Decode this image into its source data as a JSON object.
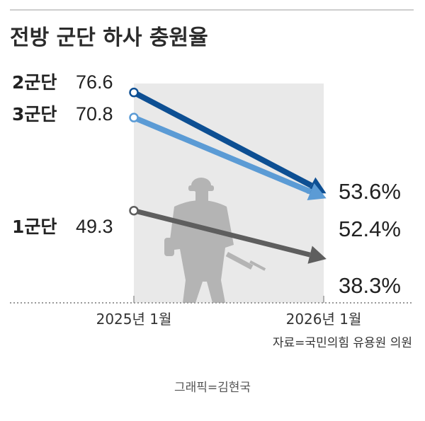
{
  "chart_data": {
    "type": "line",
    "title": "전방 군단 하사 충원율",
    "categories": [
      "2025년 1월",
      "2026년 1월"
    ],
    "series": [
      {
        "name": "2군단",
        "values": [
          76.6,
          53.6
        ],
        "left_label": "76.6",
        "right_label": "53.6%",
        "color": "#0d4f93"
      },
      {
        "name": "3군단",
        "values": [
          70.8,
          52.4
        ],
        "left_label": "70.8",
        "right_label": "52.4%",
        "color": "#5b9bd5"
      },
      {
        "name": "1군단",
        "values": [
          49.3,
          38.3
        ],
        "left_label": "49.3",
        "right_label": "38.3%",
        "color": "#5e5e5e"
      }
    ],
    "ylim": [
      30,
      85
    ],
    "grid": false,
    "legend": "none"
  },
  "source": "자료=국민의힘 유용원 의원",
  "credit": "그래픽=김현국",
  "colors": {
    "panel": "#e9e9e9",
    "baseline": "#9a9a9a",
    "silhouette": "#b4b4b4",
    "top_rule": "#bdbdbd"
  }
}
